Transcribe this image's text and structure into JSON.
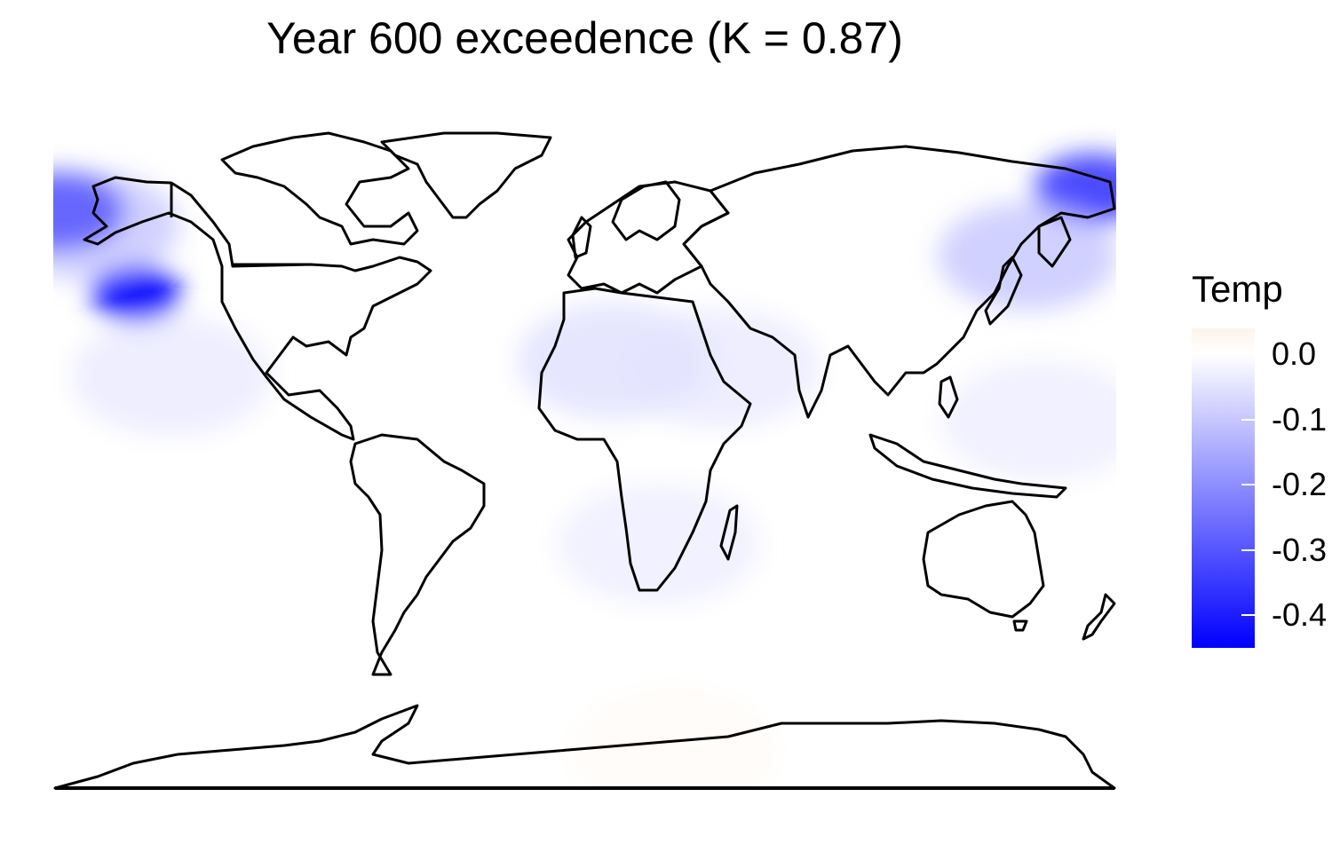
{
  "title": "Year 600 exceedence (K = 0.87)",
  "legend": {
    "title": "Temp",
    "colors": {
      "high": "#FFF3EA",
      "mid": "#FFFFFF",
      "low": "#0000FF"
    },
    "range": [
      -0.45,
      0.04
    ],
    "ticks": [
      {
        "value": 0.0,
        "label": "0.0"
      },
      {
        "value": -0.1,
        "label": "-0.1"
      },
      {
        "value": -0.2,
        "label": "-0.2"
      },
      {
        "value": -0.3,
        "label": "-0.3"
      },
      {
        "value": -0.4,
        "label": "-0.4"
      }
    ]
  },
  "map": {
    "projection": "equirectangular",
    "lon_range": [
      -180,
      180
    ],
    "lat_range": [
      -90,
      90
    ],
    "outline_color": "#000000",
    "anomalies": [
      {
        "region": "NE Pacific off California",
        "lon": -152,
        "lat": 42,
        "value": -0.45
      },
      {
        "region": "Gulf of Alaska",
        "lon": -168,
        "lat": 60,
        "value": -0.12
      },
      {
        "region": "Bering Sea west edge",
        "lon": -178,
        "lat": 64,
        "value": -0.3
      },
      {
        "region": "East Siberian Sea",
        "lon": 172,
        "lat": 70,
        "value": -0.35
      },
      {
        "region": "Sea of Okhotsk",
        "lon": 150,
        "lat": 52,
        "value": -0.12
      },
      {
        "region": "North Africa / Sahara",
        "lon": 10,
        "lat": 24,
        "value": -0.07
      },
      {
        "region": "Arabian Peninsula",
        "lon": 46,
        "lat": 22,
        "value": -0.05
      },
      {
        "region": "Subtropical North Pacific",
        "lon": -140,
        "lat": 20,
        "value": -0.05
      },
      {
        "region": "Tropical Western Pacific",
        "lon": 155,
        "lat": 8,
        "value": -0.04
      },
      {
        "region": "Southern Africa",
        "lon": 25,
        "lat": -25,
        "value": -0.04
      },
      {
        "region": "Antarctica interior",
        "lon": 30,
        "lat": -80,
        "value": 0.02
      }
    ]
  }
}
